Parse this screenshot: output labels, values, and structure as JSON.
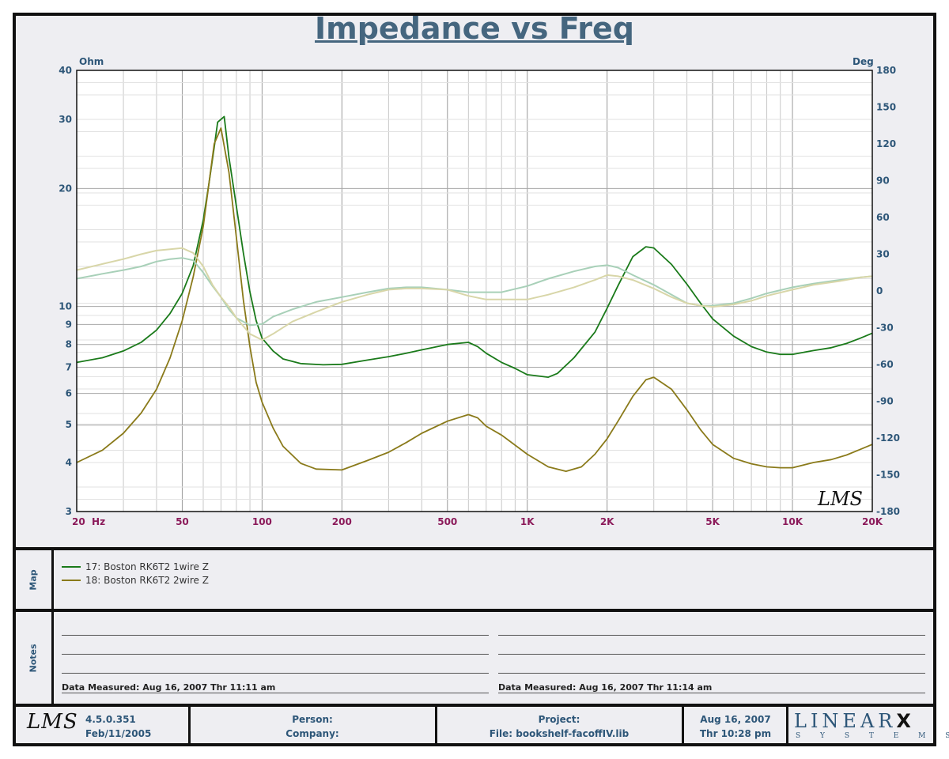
{
  "chart_data": {
    "type": "line",
    "title": "Impedance vs Freq",
    "xscale": "log",
    "xlim": [
      20,
      20000
    ],
    "x_ticks": [
      20,
      50,
      100,
      200,
      500,
      1000,
      2000,
      5000,
      10000,
      20000
    ],
    "x_tick_labels": [
      "20  Hz",
      "50",
      "100",
      "200",
      "500",
      "1K",
      "2K",
      "5K",
      "10K",
      "20K"
    ],
    "y_left": {
      "label": "Ohm",
      "scale": "log",
      "lim": [
        3,
        40
      ],
      "ticks": [
        3,
        4,
        5,
        6,
        7,
        8,
        9,
        10,
        20,
        30,
        40
      ],
      "tick_labels": [
        "3",
        "4",
        "5",
        "6",
        "7",
        "8",
        "9",
        "10",
        "20",
        "30",
        "40"
      ]
    },
    "y_right": {
      "label": "Deg",
      "scale": "linear",
      "lim": [
        -180,
        180
      ],
      "ticks": [
        180,
        150,
        120,
        90,
        60,
        30,
        0,
        -30,
        -60,
        -90,
        -120,
        -150,
        -180
      ],
      "tick_labels": [
        "180",
        "150",
        "120",
        "90",
        "60",
        "30",
        "0",
        "-30",
        "-60",
        "-90",
        "-120",
        "-150",
        "-180"
      ]
    },
    "grid": true,
    "series": [
      {
        "name": "17: Boston RK6T2 1wire Z",
        "axis": "left",
        "color": "#1a7a1a",
        "points": [
          [
            20,
            7.2
          ],
          [
            25,
            7.4
          ],
          [
            30,
            7.7
          ],
          [
            35,
            8.1
          ],
          [
            40,
            8.7
          ],
          [
            45,
            9.6
          ],
          [
            50,
            10.8
          ],
          [
            55,
            12.7
          ],
          [
            60,
            16.6
          ],
          [
            63,
            20.5
          ],
          [
            66,
            25.5
          ],
          [
            68,
            29.5
          ],
          [
            72,
            30.5
          ],
          [
            75,
            24
          ],
          [
            80,
            18
          ],
          [
            85,
            13.7
          ],
          [
            90,
            10.9
          ],
          [
            95,
            9.2
          ],
          [
            100,
            8.3
          ],
          [
            110,
            7.7
          ],
          [
            120,
            7.35
          ],
          [
            140,
            7.15
          ],
          [
            170,
            7.1
          ],
          [
            200,
            7.12
          ],
          [
            250,
            7.3
          ],
          [
            300,
            7.45
          ],
          [
            350,
            7.6
          ],
          [
            400,
            7.75
          ],
          [
            500,
            8.0
          ],
          [
            600,
            8.1
          ],
          [
            650,
            7.9
          ],
          [
            700,
            7.6
          ],
          [
            800,
            7.2
          ],
          [
            900,
            6.95
          ],
          [
            1000,
            6.7
          ],
          [
            1200,
            6.6
          ],
          [
            1300,
            6.75
          ],
          [
            1500,
            7.4
          ],
          [
            1800,
            8.6
          ],
          [
            2000,
            9.9
          ],
          [
            2200,
            11.3
          ],
          [
            2500,
            13.4
          ],
          [
            2800,
            14.2
          ],
          [
            3000,
            14.1
          ],
          [
            3500,
            12.8
          ],
          [
            4000,
            11.4
          ],
          [
            4500,
            10.2
          ],
          [
            5000,
            9.3
          ],
          [
            6000,
            8.4
          ],
          [
            7000,
            7.9
          ],
          [
            8000,
            7.65
          ],
          [
            9000,
            7.55
          ],
          [
            10000,
            7.55
          ],
          [
            12000,
            7.72
          ],
          [
            14000,
            7.85
          ],
          [
            16000,
            8.05
          ],
          [
            18000,
            8.3
          ],
          [
            20000,
            8.55
          ]
        ]
      },
      {
        "name": "18: Boston RK6T2 2wire Z",
        "axis": "left",
        "color": "#8a7a1a",
        "points": [
          [
            20,
            4.0
          ],
          [
            25,
            4.3
          ],
          [
            30,
            4.75
          ],
          [
            35,
            5.35
          ],
          [
            40,
            6.15
          ],
          [
            45,
            7.4
          ],
          [
            50,
            9.2
          ],
          [
            55,
            11.9
          ],
          [
            60,
            16.0
          ],
          [
            63,
            20.5
          ],
          [
            66,
            26.0
          ],
          [
            70,
            28.5
          ],
          [
            75,
            22
          ],
          [
            80,
            15
          ],
          [
            85,
            10.4
          ],
          [
            90,
            7.9
          ],
          [
            95,
            6.4
          ],
          [
            100,
            5.7
          ],
          [
            110,
            4.9
          ],
          [
            120,
            4.4
          ],
          [
            140,
            3.98
          ],
          [
            160,
            3.85
          ],
          [
            200,
            3.83
          ],
          [
            250,
            4.05
          ],
          [
            300,
            4.25
          ],
          [
            350,
            4.5
          ],
          [
            400,
            4.75
          ],
          [
            500,
            5.1
          ],
          [
            600,
            5.3
          ],
          [
            650,
            5.2
          ],
          [
            700,
            4.95
          ],
          [
            800,
            4.7
          ],
          [
            1000,
            4.2
          ],
          [
            1200,
            3.9
          ],
          [
            1400,
            3.8
          ],
          [
            1600,
            3.9
          ],
          [
            1800,
            4.2
          ],
          [
            2000,
            4.6
          ],
          [
            2200,
            5.1
          ],
          [
            2500,
            5.9
          ],
          [
            2800,
            6.5
          ],
          [
            3000,
            6.6
          ],
          [
            3500,
            6.15
          ],
          [
            4000,
            5.45
          ],
          [
            4500,
            4.85
          ],
          [
            5000,
            4.45
          ],
          [
            6000,
            4.1
          ],
          [
            7000,
            3.97
          ],
          [
            8000,
            3.9
          ],
          [
            9000,
            3.88
          ],
          [
            10000,
            3.88
          ],
          [
            12000,
            4.0
          ],
          [
            14000,
            4.07
          ],
          [
            16000,
            4.18
          ],
          [
            18000,
            4.32
          ],
          [
            20000,
            4.45
          ]
        ]
      },
      {
        "name": "17: Boston RK6T2 1wire Z (phase)",
        "axis": "right",
        "color": "#a8d0b8",
        "points": [
          [
            20,
            10
          ],
          [
            25,
            14
          ],
          [
            30,
            17
          ],
          [
            35,
            20
          ],
          [
            40,
            24
          ],
          [
            45,
            26
          ],
          [
            50,
            27
          ],
          [
            55,
            25
          ],
          [
            60,
            15
          ],
          [
            65,
            4
          ],
          [
            70,
            -5
          ],
          [
            75,
            -15
          ],
          [
            80,
            -22
          ],
          [
            90,
            -28
          ],
          [
            100,
            -27
          ],
          [
            110,
            -21
          ],
          [
            130,
            -15
          ],
          [
            160,
            -9
          ],
          [
            200,
            -5
          ],
          [
            250,
            -1
          ],
          [
            300,
            2
          ],
          [
            350,
            3
          ],
          [
            400,
            3
          ],
          [
            500,
            1
          ],
          [
            600,
            -1
          ],
          [
            700,
            -1
          ],
          [
            800,
            -1
          ],
          [
            1000,
            4
          ],
          [
            1200,
            10
          ],
          [
            1500,
            16
          ],
          [
            1800,
            20
          ],
          [
            2000,
            21
          ],
          [
            2200,
            19
          ],
          [
            2500,
            13
          ],
          [
            3000,
            5
          ],
          [
            3500,
            -3
          ],
          [
            4000,
            -10
          ],
          [
            4500,
            -12
          ],
          [
            5000,
            -12
          ],
          [
            6000,
            -10
          ],
          [
            7000,
            -6
          ],
          [
            8000,
            -2
          ],
          [
            10000,
            3
          ],
          [
            12000,
            6
          ],
          [
            15000,
            9
          ],
          [
            18000,
            11
          ],
          [
            20000,
            12
          ]
        ]
      },
      {
        "name": "18: Boston RK6T2 2wire Z (phase)",
        "axis": "right",
        "color": "#d8d6a8",
        "points": [
          [
            20,
            17
          ],
          [
            25,
            22
          ],
          [
            30,
            26
          ],
          [
            35,
            30
          ],
          [
            40,
            33
          ],
          [
            45,
            34
          ],
          [
            50,
            35
          ],
          [
            55,
            31
          ],
          [
            60,
            20
          ],
          [
            65,
            5
          ],
          [
            70,
            -5
          ],
          [
            75,
            -13
          ],
          [
            80,
            -22
          ],
          [
            90,
            -35
          ],
          [
            100,
            -40
          ],
          [
            110,
            -35
          ],
          [
            130,
            -25
          ],
          [
            160,
            -17
          ],
          [
            200,
            -9
          ],
          [
            250,
            -3
          ],
          [
            300,
            1
          ],
          [
            350,
            2
          ],
          [
            400,
            2
          ],
          [
            500,
            1
          ],
          [
            600,
            -4
          ],
          [
            700,
            -7
          ],
          [
            800,
            -7
          ],
          [
            1000,
            -7
          ],
          [
            1200,
            -3
          ],
          [
            1500,
            3
          ],
          [
            1800,
            9
          ],
          [
            2000,
            13
          ],
          [
            2200,
            12
          ],
          [
            2500,
            9
          ],
          [
            3000,
            2
          ],
          [
            3500,
            -5
          ],
          [
            4000,
            -10
          ],
          [
            4500,
            -12
          ],
          [
            5000,
            -13
          ],
          [
            6000,
            -11
          ],
          [
            7000,
            -8
          ],
          [
            8000,
            -4
          ],
          [
            10000,
            1
          ],
          [
            12000,
            5
          ],
          [
            15000,
            8
          ],
          [
            18000,
            11
          ],
          [
            20000,
            12
          ]
        ]
      }
    ]
  },
  "chart_text": {
    "title": "Impedance vs Freq",
    "left_unit": "Ohm",
    "right_unit": "Deg",
    "watermark": "LMS"
  },
  "map": {
    "label": "Map",
    "entries": [
      {
        "text": "17: Boston RK6T2 1wire Z",
        "color": "#1a7a1a"
      },
      {
        "text": "18: Boston RK6T2 2wire Z",
        "color": "#8a7a1a"
      }
    ]
  },
  "notes": {
    "label": "Notes",
    "left_measured": "Data Measured: Aug 16, 2007  Thr 11:11 am",
    "right_measured": "Data Measured: Aug 16, 2007  Thr 11:14 am"
  },
  "footer": {
    "logo": "LMS",
    "version": "4.5.0.351",
    "build_date": "Feb/11/2005",
    "person_label": "Person:",
    "company_label": "Company:",
    "project_label": "Project:",
    "file_label": "File: bookshelf-facoffIV.lib",
    "date": "Aug 16, 2007",
    "time": "Thr 10:28 pm",
    "brand_top": "LINEAR",
    "brand_x": "X",
    "brand_bottom": "S Y S T E M S"
  }
}
